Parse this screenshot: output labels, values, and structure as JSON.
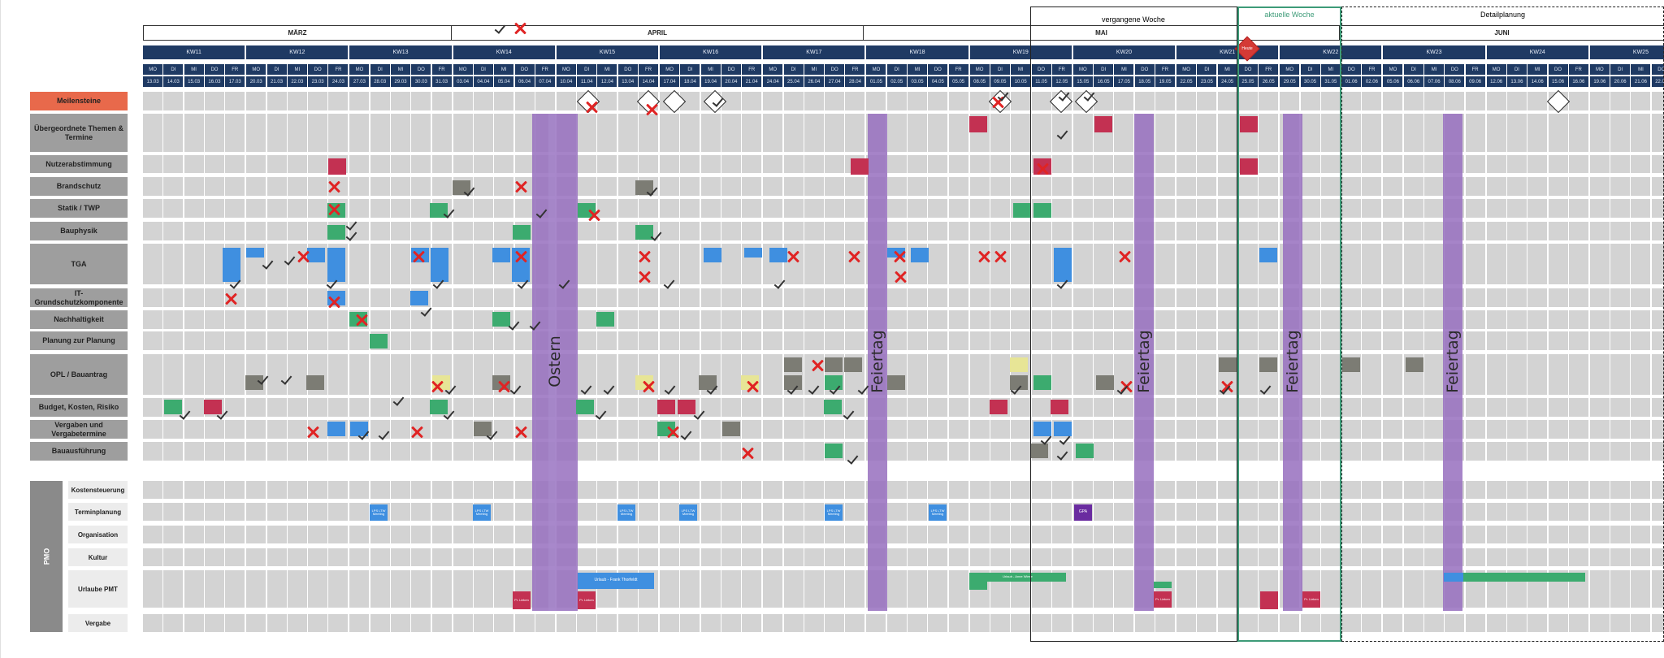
{
  "months": [
    {
      "label": "MÄRZ"
    },
    {
      "label": "APRIL"
    },
    {
      "label": "MAI"
    },
    {
      "label": "JUNI"
    }
  ],
  "frames": {
    "past_week": "vergangene Woche",
    "current_week": "aktuelle Woche",
    "detail_planning": "Detailplanung"
  },
  "weekday_names": [
    "MO",
    "DI",
    "MI",
    "DO",
    "FR"
  ],
  "weeks": [
    {
      "kw": "KW11",
      "dates": [
        "13.03",
        "14.03",
        "15.03",
        "16.03",
        "17.03"
      ]
    },
    {
      "kw": "KW12",
      "dates": [
        "20.03",
        "21.03",
        "22.03",
        "23.03",
        "24.03"
      ]
    },
    {
      "kw": "KW13",
      "dates": [
        "27.03",
        "28.03",
        "29.03",
        "30.03",
        "31.03"
      ]
    },
    {
      "kw": "KW14",
      "dates": [
        "03.04",
        "04.04",
        "05.04",
        "06.04",
        "07.04"
      ]
    },
    {
      "kw": "KW15",
      "dates": [
        "10.04",
        "11.04",
        "12.04",
        "13.04",
        "14.04"
      ]
    },
    {
      "kw": "KW16",
      "dates": [
        "17.04",
        "18.04",
        "19.04",
        "20.04",
        "21.04"
      ]
    },
    {
      "kw": "KW17",
      "dates": [
        "24.04",
        "25.04",
        "26.04",
        "27.04",
        "28.04"
      ]
    },
    {
      "kw": "KW18",
      "dates": [
        "01.05",
        "02.05",
        "03.05",
        "04.05",
        "05.05"
      ]
    },
    {
      "kw": "KW19",
      "dates": [
        "08.05",
        "09.05",
        "10.05",
        "11.05",
        "12.05"
      ]
    },
    {
      "kw": "KW20",
      "dates": [
        "15.05",
        "16.05",
        "17.05",
        "18.05",
        "19.05"
      ]
    },
    {
      "kw": "KW21",
      "dates": [
        "22.05",
        "23.05",
        "24.05",
        "25.05",
        "26.05"
      ]
    },
    {
      "kw": "KW22",
      "dates": [
        "29.05",
        "30.05",
        "31.05",
        "01.06",
        "02.06"
      ]
    },
    {
      "kw": "KW23",
      "dates": [
        "05.06",
        "06.06",
        "07.06",
        "08.06",
        "09.06"
      ]
    },
    {
      "kw": "KW24",
      "dates": [
        "12.06",
        "13.06",
        "14.06",
        "15.06",
        "16.06"
      ]
    },
    {
      "kw": "KW25",
      "dates": [
        "19.06",
        "20.06",
        "21.06",
        "22.06",
        "23.06"
      ]
    }
  ],
  "rows": [
    {
      "label": "Meilensteine"
    },
    {
      "label": "Übergeordnete Themen & Termine"
    },
    {
      "label": "Nutzerabstimmung"
    },
    {
      "label": "Brandschutz"
    },
    {
      "label": "Statik / TWP"
    },
    {
      "label": "Bauphysik"
    },
    {
      "label": "TGA"
    },
    {
      "label": "IT-Grundschutzkomponente"
    },
    {
      "label": "Nachhaltigkeit"
    },
    {
      "label": "Planung zur Planung"
    },
    {
      "label": "OPL / Bauantrag"
    },
    {
      "label": "Budget, Kosten, Risiko"
    },
    {
      "label": "Vergaben und Vergabetermine"
    },
    {
      "label": "Bauausführung"
    }
  ],
  "pmo": {
    "label": "PMO",
    "rows": [
      {
        "label": "Kostensteuerung"
      },
      {
        "label": "Terminplanung"
      },
      {
        "label": "Organisation"
      },
      {
        "label": "Kultur"
      },
      {
        "label": "Urlaube PMT"
      },
      {
        "label": "Vergabe"
      }
    ]
  },
  "holidays": [
    {
      "label": "Ostern"
    },
    {
      "label": "Feiertag"
    },
    {
      "label": "Feiertag"
    },
    {
      "label": "Feiertag"
    },
    {
      "label": "Feiertag"
    }
  ],
  "tasks": {
    "today_marker": "Heute",
    "urlaub_frank": "Urlaub - Frank Thorfeldt",
    "urlaub_mai": "Urlaub - Anne Wiese",
    "lps_meeting": "LPS LTW Meeting",
    "gpa": "GPA",
    "pr_lieken": "Pr. Lieken"
  },
  "colors": {
    "navy": "#1f3a63",
    "milestone": "#e8694b",
    "holiday": "#9a6ebe",
    "current_week": "#3d9b78",
    "task_blue": "#3f8fe0",
    "task_green": "#3cab6f",
    "task_grey": "#7c7c74",
    "task_red": "#c33152"
  }
}
